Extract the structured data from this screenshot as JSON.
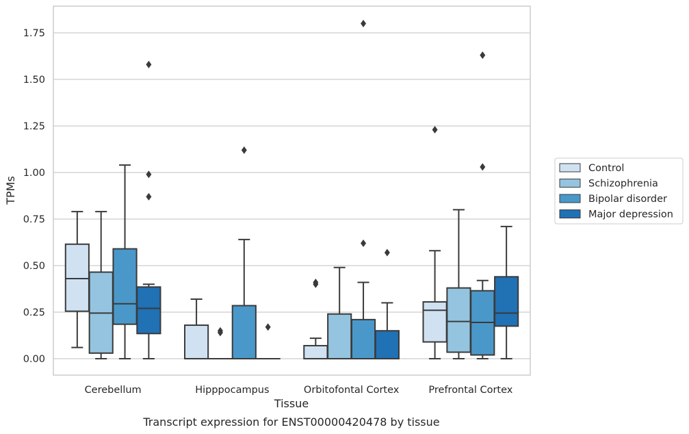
{
  "chart_data": {
    "type": "boxplot",
    "caption": "Transcript expression for ENST00000420478 by tissue",
    "xlabel": "Tissue",
    "ylabel": "TPMs",
    "ylim": [
      -0.09,
      1.89
    ],
    "yticks": [
      0.0,
      0.25,
      0.5,
      0.75,
      1.0,
      1.25,
      1.5,
      1.75
    ],
    "ytick_labels": [
      "0.00",
      "0.25",
      "0.50",
      "0.75",
      "1.00",
      "1.25",
      "1.50",
      "1.75"
    ],
    "grid": "horizontal",
    "legend_position": "right",
    "categories": [
      "Cerebellum",
      "Hipppocampus",
      "Orbitofontal Cortex",
      "Prefrontal Cortex"
    ],
    "series": [
      {
        "name": "Control",
        "color": "#d0e1f2",
        "boxes": [
          {
            "q1": 0.255,
            "median": 0.43,
            "q3": 0.615,
            "whisker_low": 0.06,
            "whisker_high": 0.79,
            "outliers": []
          },
          {
            "q1": 0.0,
            "median": 0.0,
            "q3": 0.18,
            "whisker_low": 0.0,
            "whisker_high": 0.32,
            "outliers": []
          },
          {
            "q1": 0.0,
            "median": 0.0,
            "q3": 0.07,
            "whisker_low": 0.0,
            "whisker_high": 0.11,
            "outliers": [
              0.4,
              0.41
            ]
          },
          {
            "q1": 0.09,
            "median": 0.26,
            "q3": 0.305,
            "whisker_low": 0.0,
            "whisker_high": 0.58,
            "outliers": [
              1.23
            ]
          }
        ]
      },
      {
        "name": "Schizophrenia",
        "color": "#94c4df",
        "boxes": [
          {
            "q1": 0.03,
            "median": 0.245,
            "q3": 0.465,
            "whisker_low": 0.0,
            "whisker_high": 0.79,
            "outliers": []
          },
          {
            "q1": 0.0,
            "median": 0.0,
            "q3": 0.0,
            "whisker_low": 0.0,
            "whisker_high": 0.0,
            "outliers": [
              0.14,
              0.15
            ]
          },
          {
            "q1": 0.0,
            "median": 0.0,
            "q3": 0.24,
            "whisker_low": 0.0,
            "whisker_high": 0.49,
            "outliers": []
          },
          {
            "q1": 0.035,
            "median": 0.2,
            "q3": 0.38,
            "whisker_low": 0.0,
            "whisker_high": 0.8,
            "outliers": []
          }
        ]
      },
      {
        "name": "Bipolar disorder",
        "color": "#4a98c9",
        "boxes": [
          {
            "q1": 0.185,
            "median": 0.295,
            "q3": 0.59,
            "whisker_low": 0.0,
            "whisker_high": 1.04,
            "outliers": []
          },
          {
            "q1": 0.0,
            "median": 0.0,
            "q3": 0.285,
            "whisker_low": 0.0,
            "whisker_high": 0.64,
            "outliers": [
              1.12
            ]
          },
          {
            "q1": 0.0,
            "median": 0.0,
            "q3": 0.21,
            "whisker_low": 0.0,
            "whisker_high": 0.41,
            "outliers": [
              0.62,
              1.8
            ]
          },
          {
            "q1": 0.02,
            "median": 0.195,
            "q3": 0.365,
            "whisker_low": 0.0,
            "whisker_high": 0.42,
            "outliers": [
              1.03,
              1.63
            ]
          }
        ]
      },
      {
        "name": "Major depression",
        "color": "#2171b5",
        "boxes": [
          {
            "q1": 0.135,
            "median": 0.27,
            "q3": 0.385,
            "whisker_low": 0.0,
            "whisker_high": 0.4,
            "outliers": [
              0.87,
              0.99,
              1.58
            ]
          },
          {
            "q1": 0.0,
            "median": 0.0,
            "q3": 0.0,
            "whisker_low": 0.0,
            "whisker_high": 0.0,
            "outliers": [
              0.17
            ]
          },
          {
            "q1": 0.0,
            "median": 0.0,
            "q3": 0.15,
            "whisker_low": 0.0,
            "whisker_high": 0.3,
            "outliers": [
              0.57
            ]
          },
          {
            "q1": 0.175,
            "median": 0.245,
            "q3": 0.44,
            "whisker_low": 0.0,
            "whisker_high": 0.71,
            "outliers": []
          }
        ]
      }
    ],
    "styles": {
      "grid_color": "#cccccc",
      "frame_color": "#cccccc",
      "line_color": "#3a3a3a"
    }
  }
}
